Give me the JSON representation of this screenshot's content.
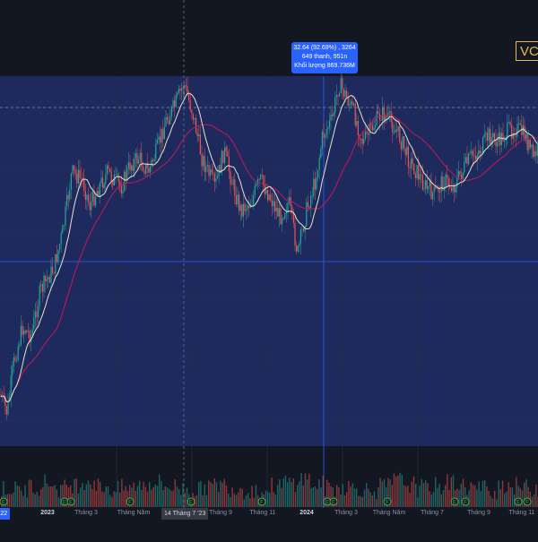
{
  "symbol": "VC",
  "tooltip": {
    "line1": "32.64 (92.69%) , 3264",
    "line2": "649 thanh, 951n",
    "line3": "Khối lượng 869.736M"
  },
  "time_axis": {
    "edge_label": "'22",
    "crosshair_label": "14 Tháng 7 '23",
    "ticks": [
      {
        "label": "2023",
        "year": true
      },
      {
        "label": "Tháng 3",
        "year": false
      },
      {
        "label": "Tháng Năm",
        "year": false
      },
      {
        "label": "Tháng 9",
        "year": false
      },
      {
        "label": "Tháng 11",
        "year": false
      },
      {
        "label": "2024",
        "year": true
      },
      {
        "label": "Tháng 3",
        "year": false
      },
      {
        "label": "Tháng Năm",
        "year": false
      },
      {
        "label": "Tháng 7",
        "year": false
      },
      {
        "label": "Tháng 9",
        "year": false
      },
      {
        "label": "Tháng 11",
        "year": false
      }
    ]
  },
  "markers": {
    "letters": [
      "E",
      "E",
      "E",
      "F",
      "E",
      "F",
      "E",
      "E",
      "F",
      "E",
      "F",
      "E",
      "F"
    ]
  },
  "colors": {
    "background": "#131722",
    "highlight_band": "#1e2a5e",
    "up": "#26a69a",
    "down": "#ef5350",
    "ma_fast": "#e8e3c7",
    "ma_slow": "#c2185b",
    "crosshair": "#2962ff",
    "grid": "#2a2e39"
  },
  "chart_data": {
    "type": "candlestick",
    "start_date": "2022-11",
    "end_date": "2024-12",
    "close_path": [
      [
        0,
        0.86
      ],
      [
        8,
        0.91
      ],
      [
        15,
        0.78
      ],
      [
        25,
        0.68
      ],
      [
        35,
        0.7
      ],
      [
        45,
        0.58
      ],
      [
        60,
        0.52
      ],
      [
        70,
        0.42
      ],
      [
        80,
        0.26
      ],
      [
        92,
        0.28
      ],
      [
        100,
        0.35
      ],
      [
        110,
        0.3
      ],
      [
        120,
        0.26
      ],
      [
        135,
        0.3
      ],
      [
        145,
        0.24
      ],
      [
        155,
        0.22
      ],
      [
        165,
        0.26
      ],
      [
        175,
        0.2
      ],
      [
        185,
        0.12
      ],
      [
        195,
        0.08
      ],
      [
        205,
        0.02
      ],
      [
        215,
        0.1
      ],
      [
        225,
        0.22
      ],
      [
        232,
        0.26
      ],
      [
        240,
        0.3
      ],
      [
        250,
        0.2
      ],
      [
        258,
        0.28
      ],
      [
        268,
        0.36
      ],
      [
        280,
        0.34
      ],
      [
        290,
        0.28
      ],
      [
        300,
        0.32
      ],
      [
        312,
        0.38
      ],
      [
        322,
        0.34
      ],
      [
        332,
        0.48
      ],
      [
        342,
        0.36
      ],
      [
        352,
        0.28
      ],
      [
        360,
        0.16
      ],
      [
        370,
        0.12
      ],
      [
        378,
        0.02
      ],
      [
        385,
        0.05
      ],
      [
        395,
        0.1
      ],
      [
        405,
        0.18
      ],
      [
        415,
        0.14
      ],
      [
        425,
        0.1
      ],
      [
        435,
        0.12
      ],
      [
        445,
        0.16
      ],
      [
        455,
        0.22
      ],
      [
        465,
        0.26
      ],
      [
        475,
        0.3
      ],
      [
        485,
        0.32
      ],
      [
        495,
        0.28
      ],
      [
        505,
        0.3
      ],
      [
        515,
        0.26
      ],
      [
        525,
        0.22
      ],
      [
        535,
        0.2
      ],
      [
        545,
        0.16
      ],
      [
        555,
        0.18
      ],
      [
        565,
        0.15
      ],
      [
        575,
        0.14
      ],
      [
        585,
        0.16
      ],
      [
        595,
        0.22
      ],
      [
        600,
        0.2
      ]
    ],
    "volume_profile": [
      0.5,
      0.4,
      0.6,
      0.8,
      0.5,
      0.7,
      0.9,
      0.6,
      0.4,
      0.5,
      0.7,
      0.8,
      0.6,
      0.5,
      0.4,
      0.6,
      0.7,
      0.5,
      0.4,
      0.3,
      0.6,
      0.8,
      1.0,
      0.7,
      0.5,
      0.6,
      0.5,
      0.4,
      0.6,
      0.9,
      0.7,
      0.5,
      0.6,
      0.8,
      0.6,
      0.5,
      0.4,
      0.7,
      0.6,
      0.5
    ]
  }
}
